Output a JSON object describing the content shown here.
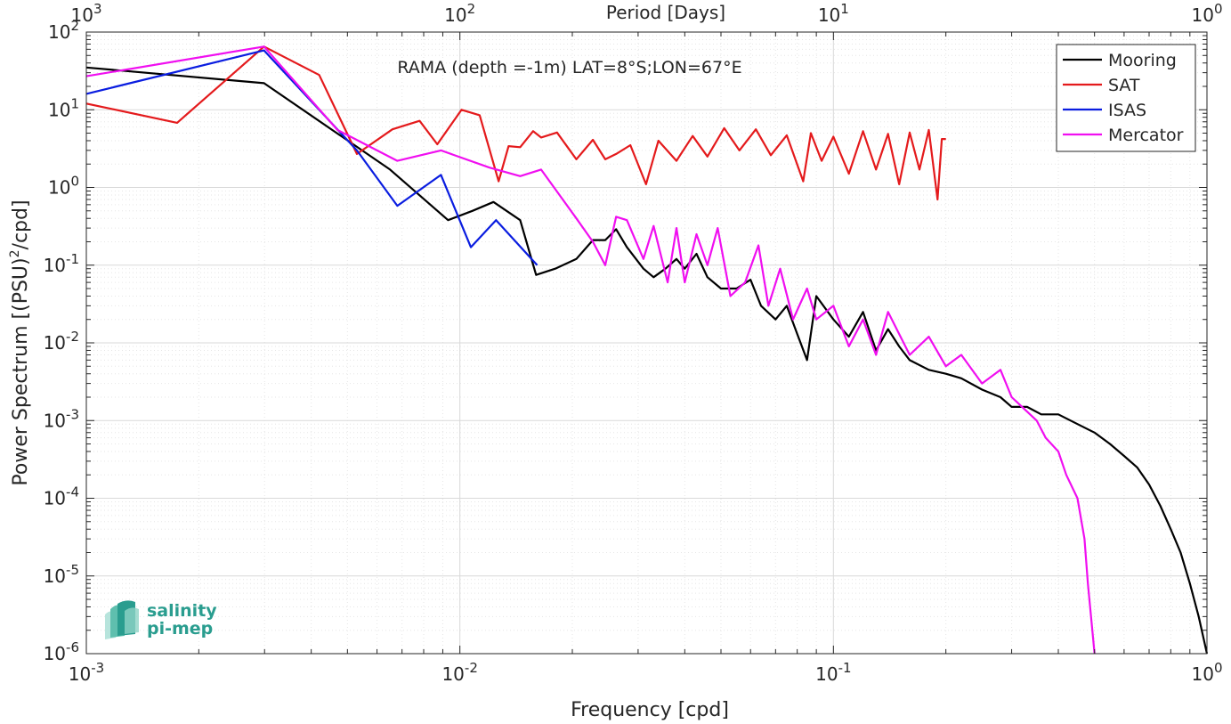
{
  "chart_data": {
    "type": "line",
    "title": "RAMA (depth =-1m) LAT=8°S;LON=67°E",
    "xlabel": "Frequency [cpd]",
    "ylabel_main": "Power Spectrum [(PSU)",
    "ylabel_sup": "2",
    "ylabel_tail": "/cpd]",
    "top_axis_label": "Period [Days]",
    "x_scale": "log",
    "y_scale": "log",
    "xlim": [
      0.001,
      1
    ],
    "ylim": [
      1e-06,
      100
    ],
    "grid": true,
    "legend_position": "top-right",
    "x_ticks": [
      {
        "value": 0.001,
        "base": "10",
        "exp": "-3"
      },
      {
        "value": 0.01,
        "base": "10",
        "exp": "-2"
      },
      {
        "value": 0.1,
        "base": "10",
        "exp": "-1"
      },
      {
        "value": 1,
        "base": "10",
        "exp": "0"
      }
    ],
    "top_ticks": [
      {
        "value": 0.001,
        "base": "10",
        "exp": "3"
      },
      {
        "value": 0.01,
        "base": "10",
        "exp": "2"
      },
      {
        "value": 0.1,
        "base": "10",
        "exp": "1"
      },
      {
        "value": 1,
        "base": "10",
        "exp": "0"
      }
    ],
    "y_ticks": [
      {
        "value": 100,
        "base": "10",
        "exp": "2"
      },
      {
        "value": 10,
        "base": "10",
        "exp": "1"
      },
      {
        "value": 1,
        "base": "10",
        "exp": "0"
      },
      {
        "value": 0.1,
        "base": "10",
        "exp": "-1"
      },
      {
        "value": 0.01,
        "base": "10",
        "exp": "-2"
      },
      {
        "value": 0.001,
        "base": "10",
        "exp": "-3"
      },
      {
        "value": 0.0001,
        "base": "10",
        "exp": "-4"
      },
      {
        "value": 1e-05,
        "base": "10",
        "exp": "-5"
      },
      {
        "value": 1e-06,
        "base": "10",
        "exp": "-6"
      }
    ],
    "series": [
      {
        "name": "Mooring",
        "color": "#000000",
        "points": [
          [
            0.001,
            35
          ],
          [
            0.00299,
            22
          ],
          [
            0.0065,
            1.7
          ],
          [
            0.0093,
            0.38
          ],
          [
            0.0108,
            0.5
          ],
          [
            0.0123,
            0.65
          ],
          [
            0.0145,
            0.38
          ],
          [
            0.016,
            0.075
          ],
          [
            0.018,
            0.09
          ],
          [
            0.0205,
            0.12
          ],
          [
            0.0227,
            0.21
          ],
          [
            0.0245,
            0.21
          ],
          [
            0.0262,
            0.29
          ],
          [
            0.028,
            0.17
          ],
          [
            0.031,
            0.09
          ],
          [
            0.033,
            0.07
          ],
          [
            0.0355,
            0.09
          ],
          [
            0.038,
            0.12
          ],
          [
            0.04,
            0.09
          ],
          [
            0.043,
            0.14
          ],
          [
            0.046,
            0.07
          ],
          [
            0.05,
            0.05
          ],
          [
            0.055,
            0.05
          ],
          [
            0.06,
            0.065
          ],
          [
            0.064,
            0.03
          ],
          [
            0.07,
            0.02
          ],
          [
            0.075,
            0.03
          ],
          [
            0.08,
            0.013
          ],
          [
            0.085,
            0.006
          ],
          [
            0.09,
            0.04
          ],
          [
            0.1,
            0.02
          ],
          [
            0.11,
            0.012
          ],
          [
            0.12,
            0.025
          ],
          [
            0.13,
            0.008
          ],
          [
            0.14,
            0.015
          ],
          [
            0.15,
            0.009
          ],
          [
            0.16,
            0.006
          ],
          [
            0.18,
            0.0045
          ],
          [
            0.2,
            0.004
          ],
          [
            0.22,
            0.0035
          ],
          [
            0.25,
            0.0025
          ],
          [
            0.28,
            0.002
          ],
          [
            0.3,
            0.0015
          ],
          [
            0.33,
            0.0015
          ],
          [
            0.36,
            0.0012
          ],
          [
            0.4,
            0.0012
          ],
          [
            0.45,
            0.0009
          ],
          [
            0.5,
            0.0007
          ],
          [
            0.55,
            0.0005
          ],
          [
            0.6,
            0.00035
          ],
          [
            0.65,
            0.00025
          ],
          [
            0.7,
            0.00015
          ],
          [
            0.75,
            8e-05
          ],
          [
            0.8,
            4e-05
          ],
          [
            0.85,
            2e-05
          ],
          [
            0.9,
            8e-06
          ],
          [
            0.95,
            3e-06
          ],
          [
            1.0,
            1e-06
          ]
        ]
      },
      {
        "name": "SAT",
        "color": "#e41a1c",
        "points": [
          [
            0.001,
            12
          ],
          [
            0.00175,
            6.8
          ],
          [
            0.00299,
            65
          ],
          [
            0.0042,
            28
          ],
          [
            0.0053,
            2.7
          ],
          [
            0.0066,
            5.6
          ],
          [
            0.0078,
            7.2
          ],
          [
            0.0087,
            3.6
          ],
          [
            0.0101,
            10
          ],
          [
            0.0113,
            8.5
          ],
          [
            0.0127,
            1.2
          ],
          [
            0.0135,
            3.4
          ],
          [
            0.0145,
            3.3
          ],
          [
            0.0157,
            5.3
          ],
          [
            0.0165,
            4.4
          ],
          [
            0.0182,
            5.1
          ],
          [
            0.0205,
            2.3
          ],
          [
            0.0227,
            4.1
          ],
          [
            0.0245,
            2.3
          ],
          [
            0.0262,
            2.7
          ],
          [
            0.0286,
            3.5
          ],
          [
            0.0315,
            1.1
          ],
          [
            0.034,
            4.0
          ],
          [
            0.038,
            2.2
          ],
          [
            0.042,
            4.6
          ],
          [
            0.046,
            2.5
          ],
          [
            0.051,
            5.8
          ],
          [
            0.056,
            3.0
          ],
          [
            0.062,
            5.6
          ],
          [
            0.068,
            2.6
          ],
          [
            0.075,
            4.7
          ],
          [
            0.083,
            1.2
          ],
          [
            0.087,
            5.0
          ],
          [
            0.093,
            2.2
          ],
          [
            0.1,
            4.5
          ],
          [
            0.11,
            1.5
          ],
          [
            0.12,
            5.3
          ],
          [
            0.13,
            1.7
          ],
          [
            0.14,
            4.9
          ],
          [
            0.15,
            1.1
          ],
          [
            0.16,
            5.1
          ],
          [
            0.17,
            1.7
          ],
          [
            0.18,
            5.5
          ],
          [
            0.19,
            0.7
          ],
          [
            0.195,
            4.2
          ],
          [
            0.2,
            4.2
          ]
        ]
      },
      {
        "name": "ISAS",
        "color": "#0a1de0",
        "points": [
          [
            0.001,
            16
          ],
          [
            0.00299,
            58
          ],
          [
            0.0053,
            3.0
          ],
          [
            0.0068,
            0.58
          ],
          [
            0.0089,
            1.45
          ],
          [
            0.0107,
            0.17
          ],
          [
            0.0125,
            0.38
          ],
          [
            0.0161,
            0.1
          ]
        ]
      },
      {
        "name": "Mercator",
        "color": "#f00ff0",
        "points": [
          [
            0.001,
            27
          ],
          [
            0.00299,
            65
          ],
          [
            0.0047,
            5.5
          ],
          [
            0.0068,
            2.2
          ],
          [
            0.0089,
            3.0
          ],
          [
            0.012,
            1.8
          ],
          [
            0.0145,
            1.4
          ],
          [
            0.0165,
            1.7
          ],
          [
            0.0205,
            0.4
          ],
          [
            0.0227,
            0.2
          ],
          [
            0.0245,
            0.1
          ],
          [
            0.0262,
            0.42
          ],
          [
            0.028,
            0.38
          ],
          [
            0.031,
            0.12
          ],
          [
            0.033,
            0.32
          ],
          [
            0.036,
            0.06
          ],
          [
            0.038,
            0.3
          ],
          [
            0.04,
            0.06
          ],
          [
            0.043,
            0.25
          ],
          [
            0.046,
            0.1
          ],
          [
            0.049,
            0.3
          ],
          [
            0.053,
            0.04
          ],
          [
            0.058,
            0.06
          ],
          [
            0.063,
            0.18
          ],
          [
            0.067,
            0.03
          ],
          [
            0.072,
            0.09
          ],
          [
            0.078,
            0.02
          ],
          [
            0.085,
            0.05
          ],
          [
            0.09,
            0.02
          ],
          [
            0.1,
            0.03
          ],
          [
            0.11,
            0.009
          ],
          [
            0.12,
            0.02
          ],
          [
            0.13,
            0.007
          ],
          [
            0.14,
            0.025
          ],
          [
            0.16,
            0.007
          ],
          [
            0.18,
            0.012
          ],
          [
            0.2,
            0.005
          ],
          [
            0.22,
            0.007
          ],
          [
            0.25,
            0.003
          ],
          [
            0.28,
            0.0045
          ],
          [
            0.3,
            0.002
          ],
          [
            0.32,
            0.0015
          ],
          [
            0.35,
            0.001
          ],
          [
            0.37,
            0.0006
          ],
          [
            0.4,
            0.0004
          ],
          [
            0.42,
            0.0002
          ],
          [
            0.45,
            0.0001
          ],
          [
            0.47,
            3e-05
          ],
          [
            0.48,
            8e-06
          ],
          [
            0.5,
            1e-06
          ]
        ]
      }
    ]
  },
  "logo": {
    "line1": "salinity",
    "line2": "pi-mep",
    "color": "#2a9d8f"
  }
}
